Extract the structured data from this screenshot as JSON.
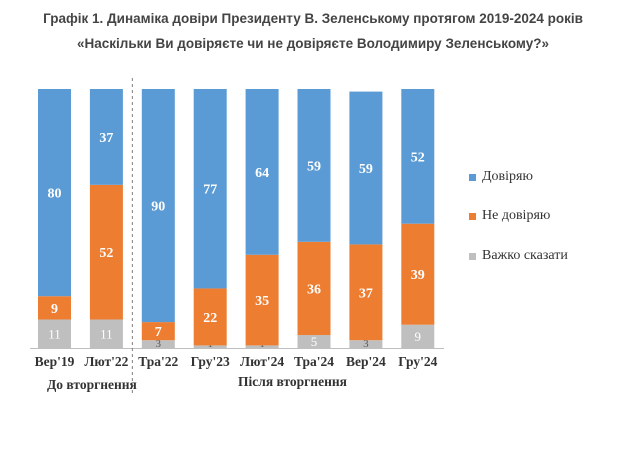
{
  "header": {
    "title_line1": "Графік 1. Динаміка довіри Президенту В. Зеленському протягом 2019-2024 років",
    "title_line2": "«Наскільки Ви довіряєте чи не довіряєте Володимиру Зеленському?»"
  },
  "colors": {
    "trust": "#5b9bd5",
    "distrust": "#ed7d31",
    "hard_to_say": "#bfbfbf"
  },
  "chart_data": {
    "type": "bar",
    "stacked": true,
    "title": "Графік 1. Динаміка довіри Президенту В. Зеленському протягом 2019-2024 років",
    "subtitle": "«Наскільки Ви довіряєте чи не довіряєте Володимиру Зеленському?»",
    "categories": [
      "Вер'19",
      "Лют'22",
      "Тра'22",
      "Гру'23",
      "Лют'24",
      "Тра'24",
      "Вер'24",
      "Гру'24"
    ],
    "series": [
      {
        "name": "Важко сказати",
        "values": [
          11,
          11,
          3,
          1,
          1,
          5,
          3,
          9
        ]
      },
      {
        "name": "Не довіряю",
        "values": [
          9,
          52,
          7,
          22,
          35,
          36,
          37,
          39
        ]
      },
      {
        "name": "Довіряю",
        "values": [
          80,
          37,
          90,
          77,
          64,
          59,
          59,
          52
        ]
      }
    ],
    "ylim": [
      0,
      100
    ],
    "legend_position": "right",
    "legend": [
      "Довіряю",
      "Не довіряю",
      "Важко сказати"
    ],
    "groups": [
      {
        "label": "До вторгнення",
        "categories": [
          "Вер'19",
          "Лют'22"
        ]
      },
      {
        "label": "Після вторгнення",
        "categories": [
          "Тра'22",
          "Гру'23",
          "Лют'24",
          "Тра'24",
          "Вер'24",
          "Гру'24"
        ]
      }
    ]
  }
}
